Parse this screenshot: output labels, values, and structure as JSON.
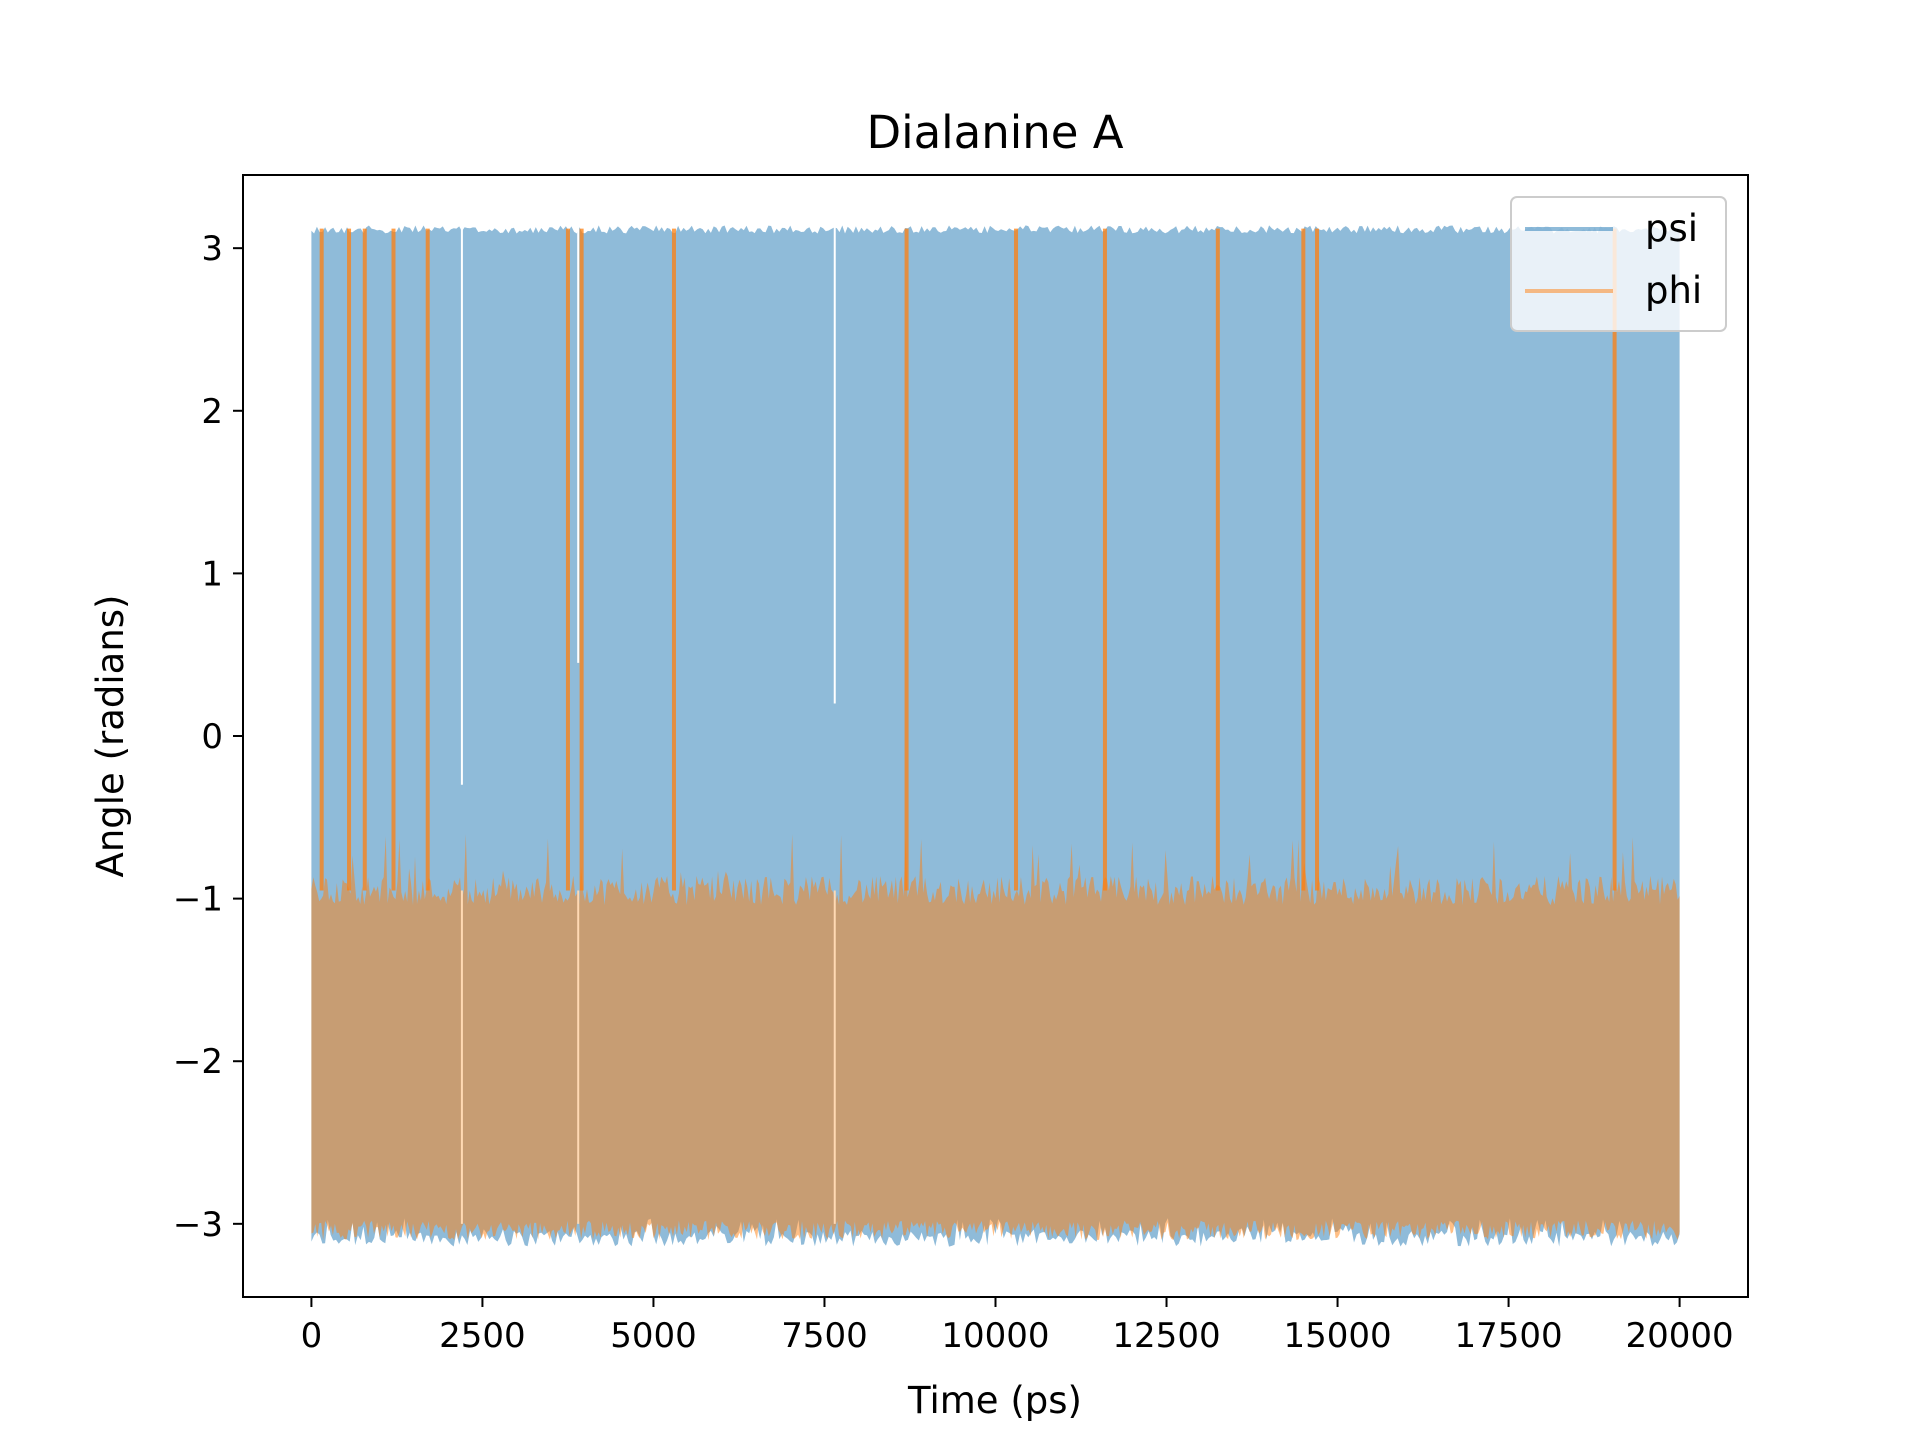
{
  "chart_data": {
    "type": "line",
    "title": "Dialanine A",
    "xlabel": "Time (ps)",
    "ylabel": "Angle (radians)",
    "xlim": [
      -1000,
      21000
    ],
    "ylim": [
      -3.45,
      3.45
    ],
    "x_ticks": [
      0,
      2500,
      5000,
      7500,
      10000,
      12500,
      15000,
      17500,
      20000
    ],
    "x_tick_labels": [
      "0",
      "2500",
      "5000",
      "7500",
      "10000",
      "12500",
      "15000",
      "17500",
      "20000"
    ],
    "y_ticks": [
      -3,
      -2,
      -1,
      0,
      1,
      2,
      3
    ],
    "y_tick_labels": [
      "−3",
      "−2",
      "−1",
      "0",
      "1",
      "2",
      "3"
    ],
    "grid": false,
    "legend_position": "top-right",
    "series": [
      {
        "name": "psi",
        "color": "#1f77b4",
        "alpha": 0.5,
        "x_range": [
          0,
          20000
        ],
        "band_min": -3.14,
        "band_max": 3.14,
        "gaps": [
          {
            "x": 2200,
            "y_low": -0.3,
            "y_high": 3.14
          },
          {
            "x": 3900,
            "y_low": 0.45,
            "y_high": 3.14
          },
          {
            "x": 7650,
            "y_low": 0.2,
            "y_high": 3.14
          }
        ]
      },
      {
        "name": "phi",
        "color": "#ff7f0e",
        "alpha": 0.5,
        "x_range": [
          0,
          20000
        ],
        "band_min": -3.1,
        "band_max": -0.95,
        "peak_max": -0.6,
        "transitions": [
          150,
          550,
          780,
          1200,
          1700,
          3750,
          3950,
          5300,
          8700,
          10300,
          11600,
          13250,
          14500,
          14700,
          19050
        ]
      }
    ]
  }
}
